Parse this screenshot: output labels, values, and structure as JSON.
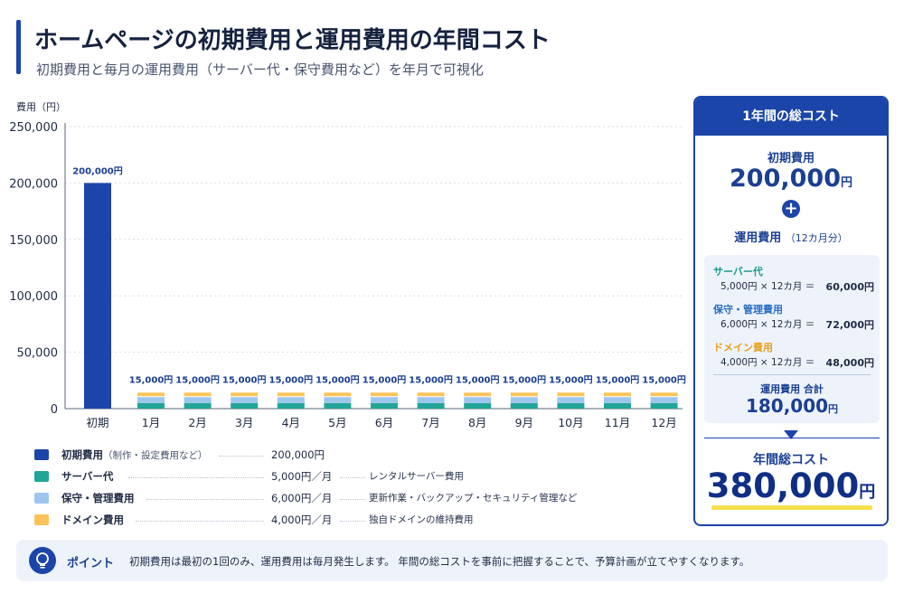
{
  "header": {
    "title": "ホームページの初期費用と運用費用の年間コスト",
    "subtitle": "初期費用と毎月の運用費用（サーバー代・保守費用など）を年月で可視化"
  },
  "colors": {
    "initial": "#1b45a8",
    "server": "#22a597",
    "maintenance": "#9dc6ee",
    "domain": "#fac45a",
    "accent": "#1b45a8",
    "highlight": "#f5e04a"
  },
  "chart_data": {
    "type": "bar",
    "stacked": true,
    "ylabel": "費用（円）",
    "ylim": [
      0,
      250000
    ],
    "yticks": [
      "0",
      "50,000",
      "100,000",
      "150,000",
      "200,000",
      "250,000"
    ],
    "yticks_values": [
      0,
      50000,
      100000,
      150000,
      200000,
      250000
    ],
    "grid": true,
    "categories": [
      "初期",
      "1月",
      "2月",
      "3月",
      "4月",
      "5月",
      "6月",
      "7月",
      "8月",
      "9月",
      "10月",
      "11月",
      "12月"
    ],
    "series": [
      {
        "name": "初期費用",
        "values": [
          200000,
          0,
          0,
          0,
          0,
          0,
          0,
          0,
          0,
          0,
          0,
          0,
          0
        ]
      },
      {
        "name": "サーバー代",
        "values": [
          0,
          5000,
          5000,
          5000,
          5000,
          5000,
          5000,
          5000,
          5000,
          5000,
          5000,
          5000,
          5000
        ]
      },
      {
        "name": "保守・管理費用",
        "values": [
          0,
          6000,
          6000,
          6000,
          6000,
          6000,
          6000,
          6000,
          6000,
          6000,
          6000,
          6000,
          6000
        ]
      },
      {
        "name": "ドメイン費用",
        "values": [
          0,
          4000,
          4000,
          4000,
          4000,
          4000,
          4000,
          4000,
          4000,
          4000,
          4000,
          4000,
          4000
        ]
      }
    ],
    "data_labels": [
      "200,000円",
      "15,000円",
      "15,000円",
      "15,000円",
      "15,000円",
      "15,000円",
      "15,000円",
      "15,000円",
      "15,000円",
      "15,000円",
      "15,000円",
      "15,000円",
      "15,000円"
    ]
  },
  "legend": [
    {
      "name": "初期費用",
      "note": "（制作・設定費用など）",
      "value": "200,000円",
      "desc": ""
    },
    {
      "name": "サーバー代",
      "note": "",
      "value": "5,000円／月",
      "desc": "レンタルサーバー費用"
    },
    {
      "name": "保守・管理費用",
      "note": "",
      "value": "6,000円／月",
      "desc": "更新作業・バックアップ・セキュリティ管理など"
    },
    {
      "name": "ドメイン費用",
      "note": "",
      "value": "4,000円／月",
      "desc": "独自ドメインの維持費用"
    }
  ],
  "panel": {
    "title": "1年間の総コスト",
    "initial_label": "初期費用",
    "initial_value": "200,000",
    "yen": "円",
    "plus": "+",
    "running_label": "運用費用",
    "running_note": "（12カ月分）",
    "items": [
      {
        "name": "サーバー代",
        "formula": "5,000円 × 12カ月 ＝",
        "result": "60,000円"
      },
      {
        "name": "保守・管理費用",
        "formula": "6,000円 × 12カ月 ＝",
        "result": "72,000円"
      },
      {
        "name": "ドメイン費用",
        "formula": "4,000円 × 12カ月 ＝",
        "result": "48,000円"
      }
    ],
    "running_total_label": "運用費用 合計",
    "running_total_value": "180,000",
    "total_label": "年間総コスト",
    "total_value": "380,000"
  },
  "point": {
    "icon": "lightbulb-icon",
    "label": "ポイント",
    "text": "初期費用は最初の1回のみ、運用費用は毎月発生します。 年間の総コストを事前に把握することで、予算計画が立てやすくなります。"
  }
}
